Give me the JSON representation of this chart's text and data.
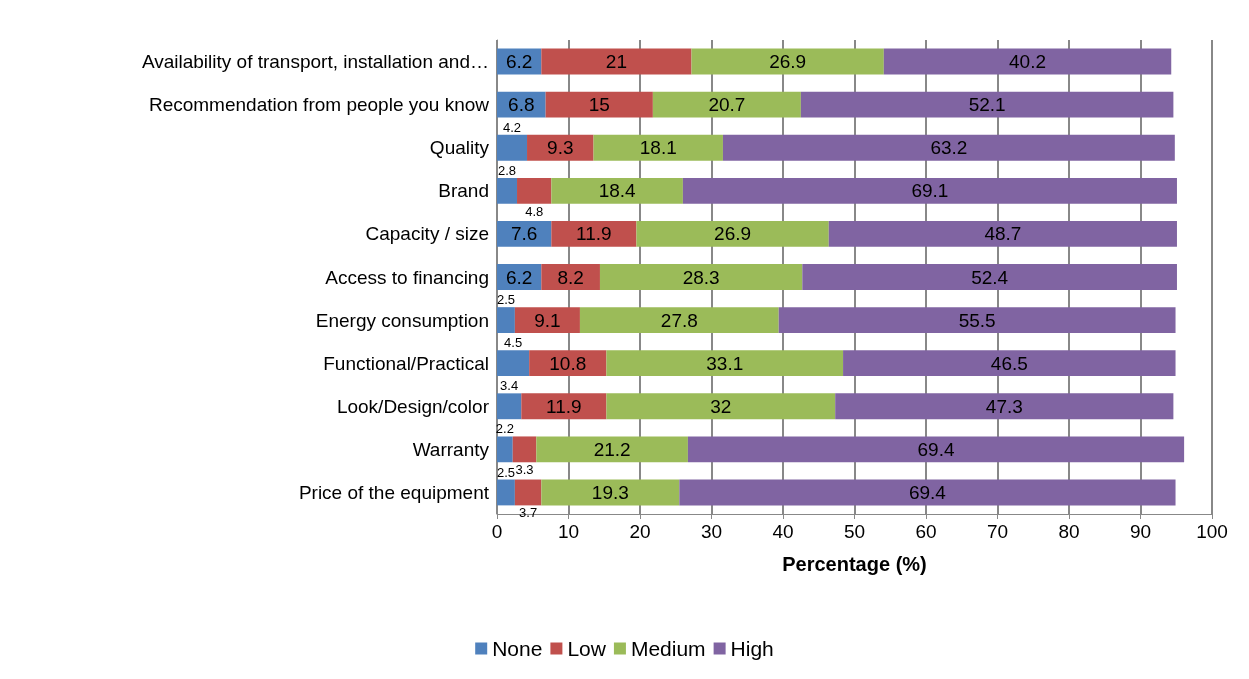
{
  "chart_data": {
    "type": "bar",
    "orientation": "horizontal",
    "stacked": true,
    "xlabel": "Percentage (%)",
    "categories": [
      "Availability of transport, installation and…",
      "Recommendation from people you know",
      "Quality",
      "Brand",
      "Capacity / size",
      "Access to financing",
      "Energy consumption",
      "Functional/Practical",
      "Look/Design/color",
      "Warranty",
      "Price of the equipment"
    ],
    "series": [
      {
        "name": "None",
        "color": "#4f81bd",
        "values": [
          6.2,
          6.8,
          4.2,
          2.8,
          7.6,
          6.2,
          2.5,
          4.5,
          3.4,
          2.2,
          2.5
        ]
      },
      {
        "name": "Low",
        "color": "#c0504d",
        "values": [
          21,
          15,
          9.3,
          4.8,
          11.9,
          8.2,
          9.1,
          10.8,
          11.9,
          3.3,
          3.7
        ]
      },
      {
        "name": "Medium",
        "color": "#9bbb59",
        "values": [
          26.9,
          20.7,
          18.1,
          18.4,
          26.9,
          28.3,
          27.8,
          33.1,
          32,
          21.2,
          19.3
        ]
      },
      {
        "name": "High",
        "color": "#8064a2",
        "values": [
          40.2,
          52.1,
          63.2,
          69.1,
          48.7,
          52.4,
          55.5,
          46.5,
          47.3,
          69.4,
          69.4
        ]
      }
    ],
    "xlim": [
      0,
      100
    ],
    "xticks": [
      0,
      10,
      20,
      30,
      40,
      50,
      60,
      70,
      80,
      90,
      100
    ],
    "grid": "x",
    "legend": "bottom",
    "data_labels": true
  }
}
